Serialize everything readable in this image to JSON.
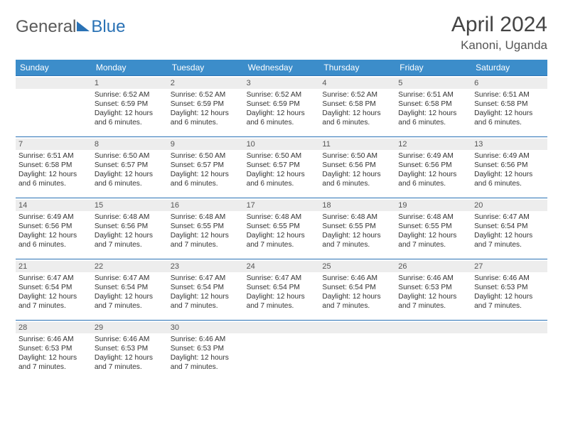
{
  "brand": {
    "word1": "General",
    "word2": "Blue"
  },
  "title": {
    "monthYear": "April 2024",
    "location": "Kanoni, Uganda"
  },
  "style": {
    "accent": "#3c8dca",
    "border": "#2a72b5",
    "daybar": "#ededed",
    "text": "#333333",
    "bg": "#ffffff",
    "header_fontsize": 30,
    "location_fontsize": 17,
    "dayhead_fontsize": 12,
    "cell_fontsize": 10.2
  },
  "weekdays": [
    "Sunday",
    "Monday",
    "Tuesday",
    "Wednesday",
    "Thursday",
    "Friday",
    "Saturday"
  ],
  "leadingBlanks": 1,
  "days": [
    {
      "n": 1,
      "sr": "6:52 AM",
      "ss": "6:59 PM",
      "dlh": 12,
      "dlm": 6
    },
    {
      "n": 2,
      "sr": "6:52 AM",
      "ss": "6:59 PM",
      "dlh": 12,
      "dlm": 6
    },
    {
      "n": 3,
      "sr": "6:52 AM",
      "ss": "6:59 PM",
      "dlh": 12,
      "dlm": 6
    },
    {
      "n": 4,
      "sr": "6:52 AM",
      "ss": "6:58 PM",
      "dlh": 12,
      "dlm": 6
    },
    {
      "n": 5,
      "sr": "6:51 AM",
      "ss": "6:58 PM",
      "dlh": 12,
      "dlm": 6
    },
    {
      "n": 6,
      "sr": "6:51 AM",
      "ss": "6:58 PM",
      "dlh": 12,
      "dlm": 6
    },
    {
      "n": 7,
      "sr": "6:51 AM",
      "ss": "6:58 PM",
      "dlh": 12,
      "dlm": 6
    },
    {
      "n": 8,
      "sr": "6:50 AM",
      "ss": "6:57 PM",
      "dlh": 12,
      "dlm": 6
    },
    {
      "n": 9,
      "sr": "6:50 AM",
      "ss": "6:57 PM",
      "dlh": 12,
      "dlm": 6
    },
    {
      "n": 10,
      "sr": "6:50 AM",
      "ss": "6:57 PM",
      "dlh": 12,
      "dlm": 6
    },
    {
      "n": 11,
      "sr": "6:50 AM",
      "ss": "6:56 PM",
      "dlh": 12,
      "dlm": 6
    },
    {
      "n": 12,
      "sr": "6:49 AM",
      "ss": "6:56 PM",
      "dlh": 12,
      "dlm": 6
    },
    {
      "n": 13,
      "sr": "6:49 AM",
      "ss": "6:56 PM",
      "dlh": 12,
      "dlm": 6
    },
    {
      "n": 14,
      "sr": "6:49 AM",
      "ss": "6:56 PM",
      "dlh": 12,
      "dlm": 6
    },
    {
      "n": 15,
      "sr": "6:48 AM",
      "ss": "6:56 PM",
      "dlh": 12,
      "dlm": 7
    },
    {
      "n": 16,
      "sr": "6:48 AM",
      "ss": "6:55 PM",
      "dlh": 12,
      "dlm": 7
    },
    {
      "n": 17,
      "sr": "6:48 AM",
      "ss": "6:55 PM",
      "dlh": 12,
      "dlm": 7
    },
    {
      "n": 18,
      "sr": "6:48 AM",
      "ss": "6:55 PM",
      "dlh": 12,
      "dlm": 7
    },
    {
      "n": 19,
      "sr": "6:48 AM",
      "ss": "6:55 PM",
      "dlh": 12,
      "dlm": 7
    },
    {
      "n": 20,
      "sr": "6:47 AM",
      "ss": "6:54 PM",
      "dlh": 12,
      "dlm": 7
    },
    {
      "n": 21,
      "sr": "6:47 AM",
      "ss": "6:54 PM",
      "dlh": 12,
      "dlm": 7
    },
    {
      "n": 22,
      "sr": "6:47 AM",
      "ss": "6:54 PM",
      "dlh": 12,
      "dlm": 7
    },
    {
      "n": 23,
      "sr": "6:47 AM",
      "ss": "6:54 PM",
      "dlh": 12,
      "dlm": 7
    },
    {
      "n": 24,
      "sr": "6:47 AM",
      "ss": "6:54 PM",
      "dlh": 12,
      "dlm": 7
    },
    {
      "n": 25,
      "sr": "6:46 AM",
      "ss": "6:54 PM",
      "dlh": 12,
      "dlm": 7
    },
    {
      "n": 26,
      "sr": "6:46 AM",
      "ss": "6:53 PM",
      "dlh": 12,
      "dlm": 7
    },
    {
      "n": 27,
      "sr": "6:46 AM",
      "ss": "6:53 PM",
      "dlh": 12,
      "dlm": 7
    },
    {
      "n": 28,
      "sr": "6:46 AM",
      "ss": "6:53 PM",
      "dlh": 12,
      "dlm": 7
    },
    {
      "n": 29,
      "sr": "6:46 AM",
      "ss": "6:53 PM",
      "dlh": 12,
      "dlm": 7
    },
    {
      "n": 30,
      "sr": "6:46 AM",
      "ss": "6:53 PM",
      "dlh": 12,
      "dlm": 7
    }
  ],
  "labels": {
    "sunrise": "Sunrise:",
    "sunset": "Sunset:",
    "daylightPrefix": "Daylight:",
    "hoursWord": "hours",
    "andWord": "and",
    "minutesWord": "minutes."
  }
}
